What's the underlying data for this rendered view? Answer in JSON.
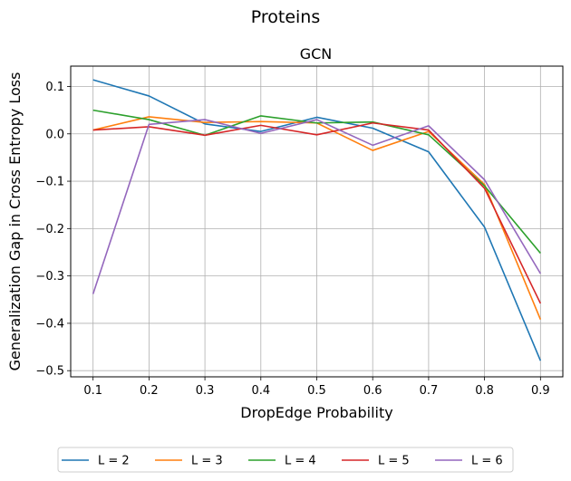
{
  "suptitle": "Proteins",
  "chart_data": {
    "type": "line",
    "title": "GCN",
    "xlabel": "DropEdge Probability",
    "ylabel": "Generalization Gap in Cross Entropy Loss",
    "x": [
      0.1,
      0.2,
      0.3,
      0.4,
      0.5,
      0.6,
      0.7,
      0.8,
      0.9
    ],
    "xticks": [
      "0.1",
      "0.2",
      "0.3",
      "0.4",
      "0.5",
      "0.6",
      "0.7",
      "0.8",
      "0.9"
    ],
    "yticks": [
      0.1,
      0.0,
      -0.1,
      -0.2,
      -0.3,
      -0.4,
      -0.5
    ],
    "ytick_labels": [
      "0.1",
      "0.0",
      "−0.1",
      "−0.2",
      "−0.3",
      "−0.4",
      "−0.5"
    ],
    "xlim": [
      0.06,
      0.94
    ],
    "ylim": [
      -0.513,
      0.143
    ],
    "grid": true,
    "legend_placement": "below plot, single row",
    "series": [
      {
        "name": "L = 2",
        "color": "#1f77b4",
        "values": [
          0.114,
          0.08,
          0.021,
          0.005,
          0.035,
          0.012,
          -0.038,
          -0.197,
          -0.479
        ]
      },
      {
        "name": "L = 3",
        "color": "#ff7f0e",
        "values": [
          0.008,
          0.036,
          0.024,
          0.026,
          0.023,
          -0.035,
          0.005,
          -0.107,
          -0.392
        ]
      },
      {
        "name": "L = 4",
        "color": "#2ca02c",
        "values": [
          0.05,
          0.03,
          -0.003,
          0.038,
          0.023,
          0.025,
          -0.002,
          -0.11,
          -0.252
        ]
      },
      {
        "name": "L = 5",
        "color": "#d62728",
        "values": [
          0.008,
          0.015,
          -0.003,
          0.018,
          -0.002,
          0.023,
          0.008,
          -0.115,
          -0.358
        ]
      },
      {
        "name": "L = 6",
        "color": "#9467bd",
        "values": [
          -0.338,
          0.02,
          0.03,
          0.001,
          0.03,
          -0.024,
          0.017,
          -0.097,
          -0.295
        ]
      }
    ]
  }
}
